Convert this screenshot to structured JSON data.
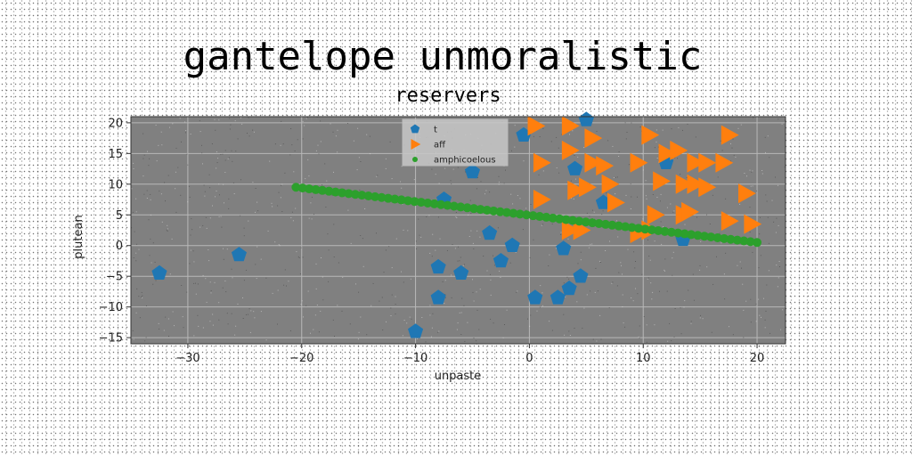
{
  "chart_data": {
    "type": "scatter",
    "suptitle": "gantelope unmoralistic",
    "title": "reservers",
    "xlabel": "unpaste",
    "ylabel": "plutean",
    "xlim": [
      -35,
      22.5
    ],
    "ylim": [
      -16,
      21
    ],
    "xticks": [
      -30,
      -20,
      -10,
      0,
      10,
      20
    ],
    "yticks": [
      -15,
      -10,
      -5,
      0,
      5,
      10,
      15,
      20
    ],
    "xtick_labels": [
      "−30",
      "−20",
      "−10",
      "0",
      "10",
      "20"
    ],
    "ytick_labels": [
      "−15",
      "−10",
      "−5",
      "0",
      "5",
      "10",
      "15",
      "20"
    ],
    "grid": true,
    "legend_position": "top-center",
    "colors": {
      "axes_bg": "#808080",
      "t": "#1f77b4",
      "aff": "#ff7f0e",
      "amphicoelous": "#2ca02c"
    },
    "series": [
      {
        "name": "t",
        "marker": "pentagon",
        "color": "#1f77b4",
        "points": [
          [
            -32.5,
            -4.5
          ],
          [
            -25.5,
            -1.5
          ],
          [
            -7.5,
            7.5
          ],
          [
            -5,
            12
          ],
          [
            -3.5,
            2
          ],
          [
            -1.5,
            0
          ],
          [
            -2.5,
            -2.5
          ],
          [
            -8,
            -3.5
          ],
          [
            -6,
            -4.5
          ],
          [
            -8,
            -8.5
          ],
          [
            -10,
            -14
          ],
          [
            0.5,
            -8.5
          ],
          [
            2.5,
            -8.5
          ],
          [
            3.5,
            -7
          ],
          [
            4.5,
            -5
          ],
          [
            3,
            -0.5
          ],
          [
            5,
            20.5
          ],
          [
            -0.5,
            18
          ],
          [
            4,
            12.5
          ],
          [
            6.5,
            7
          ],
          [
            12,
            13.5
          ],
          [
            13.5,
            1
          ]
        ]
      },
      {
        "name": "aff",
        "marker": "triangle-right",
        "color": "#ff7f0e",
        "points": [
          [
            0.5,
            19.5
          ],
          [
            3.5,
            19.5
          ],
          [
            3.5,
            15.5
          ],
          [
            5.5,
            17.5
          ],
          [
            5.5,
            13.5
          ],
          [
            6.5,
            13
          ],
          [
            1,
            13.5
          ],
          [
            9.5,
            13.5
          ],
          [
            4,
            9
          ],
          [
            5,
            9.5
          ],
          [
            7,
            10
          ],
          [
            11.5,
            10.5
          ],
          [
            13.5,
            10
          ],
          [
            14.5,
            10
          ],
          [
            15.5,
            9.5
          ],
          [
            19,
            8.5
          ],
          [
            1,
            7.5
          ],
          [
            7.5,
            7
          ],
          [
            11,
            5
          ],
          [
            13.5,
            5
          ],
          [
            14,
            5.5
          ],
          [
            17.5,
            4
          ],
          [
            19.5,
            3.5
          ],
          [
            3.5,
            2.5
          ],
          [
            4.5,
            2.5
          ],
          [
            9.5,
            2
          ],
          [
            10.5,
            2.5
          ],
          [
            10.5,
            18
          ],
          [
            12,
            15
          ],
          [
            13,
            15.5
          ],
          [
            14.5,
            13.5
          ],
          [
            15.5,
            13.5
          ],
          [
            17,
            13.5
          ],
          [
            17.5,
            18
          ]
        ]
      },
      {
        "name": "amphicoelous",
        "marker": "line-dots",
        "color": "#2ca02c",
        "points": [
          [
            -20.5,
            9.5
          ],
          [
            20,
            0.5
          ]
        ]
      }
    ]
  }
}
